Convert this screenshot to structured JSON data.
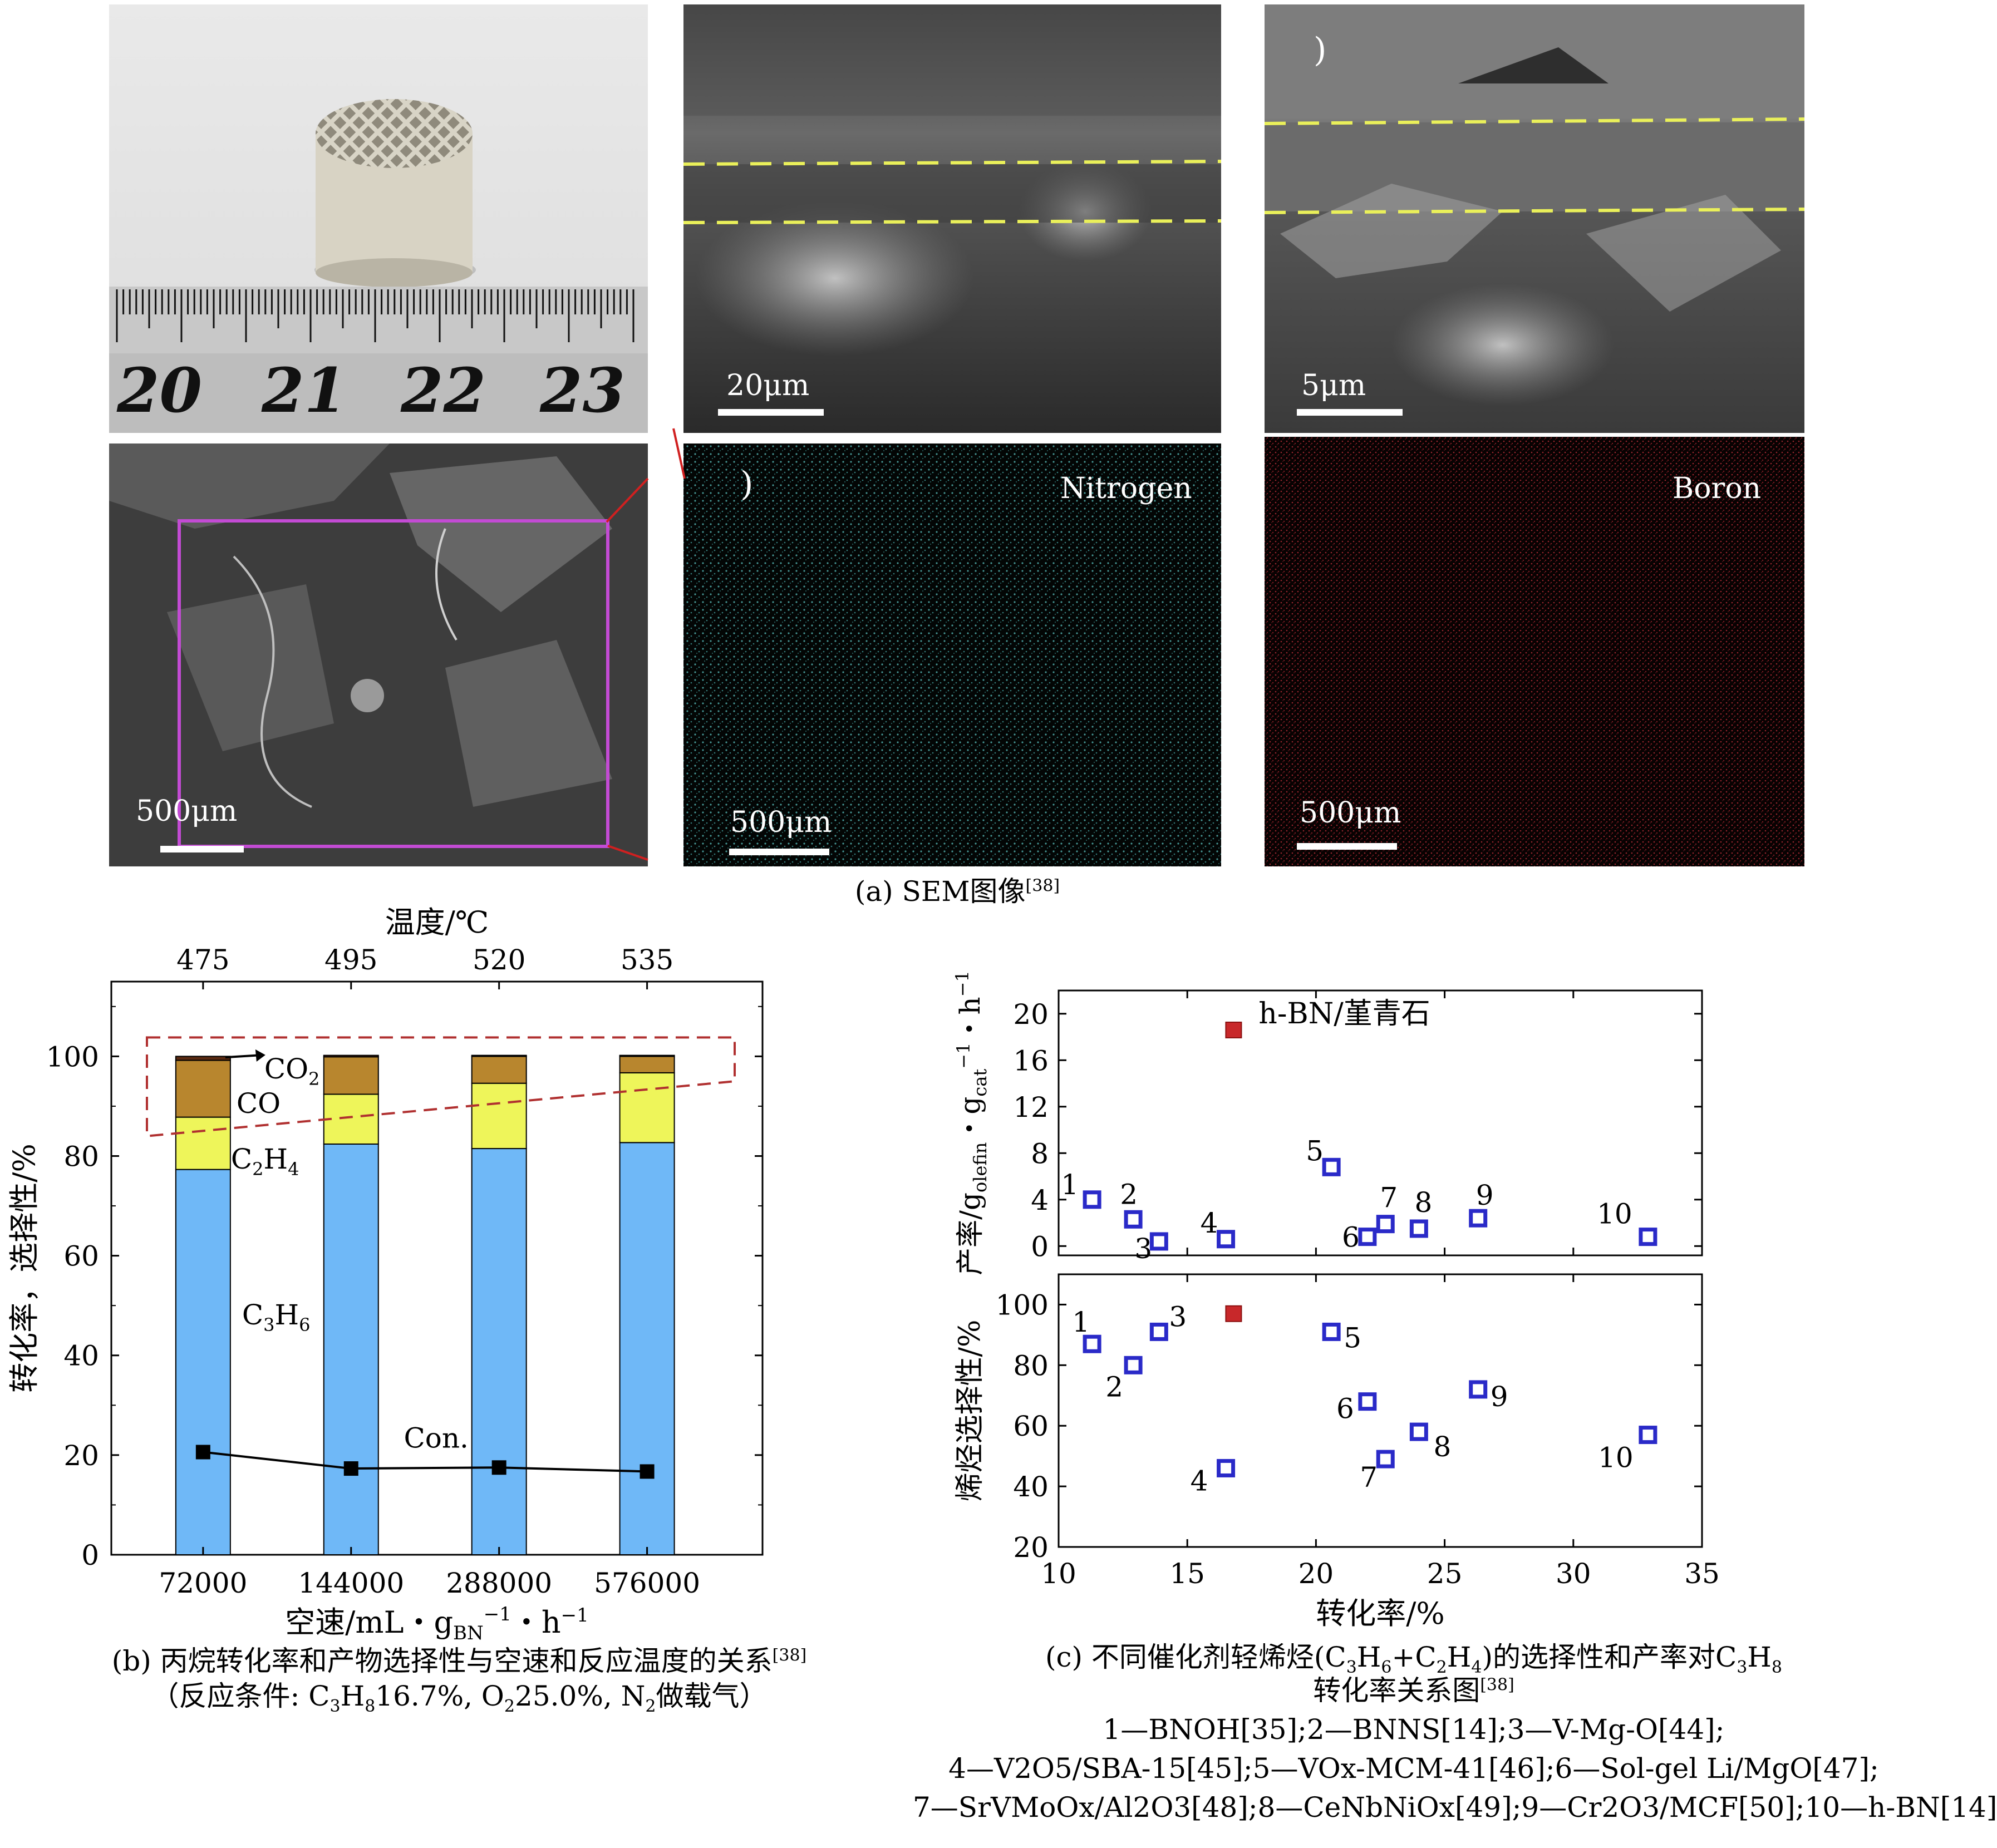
{
  "panel_a": {
    "photo": {
      "ruler_labels": [
        "20",
        "21",
        "22",
        "23"
      ]
    },
    "sem_mid": {
      "scale_label": "20μm"
    },
    "sem_right": {
      "scale_label": "5μm"
    },
    "sem_bottom_left": {
      "scale_label": "500μm"
    },
    "map_nitrogen": {
      "element_label": "Nitrogen",
      "scale_label": "500μm"
    },
    "map_boron": {
      "element_label": "Boron",
      "scale_label": "500μm"
    },
    "caption": "(a) SEM图像",
    "caption_ref": "[38]"
  },
  "panel_b": {
    "caption_line1": "(b) 丙烷转化率和产物选择性与空速和反应温度的关系",
    "caption_line1_ref": "[38]",
    "caption_line2_parts": [
      "（反应条件: C",
      "3",
      "H",
      "8",
      "16.7%, O",
      "2",
      "25.0%, N",
      "2",
      "做载气）"
    ]
  },
  "panel_c": {
    "caption_line1_parts": [
      "(c) 不同催化剂轻烯烃(C",
      "3",
      "H",
      "6",
      "+C",
      "2",
      "H",
      "4",
      ")的选择性和产率对C",
      "3",
      "H",
      "8"
    ],
    "caption_line2": "转化率关系图",
    "caption_line2_ref": "[38]",
    "legend_line1": "1—BNOH[35];2—BNNS[14];3—V-Mg-O[44];",
    "legend_line2": "4—V2O5/SBA-15[45];5—VOx-MCM-41[46];6—Sol-gel Li/MgO[47];",
    "legend_line3": "7—SrVMoOx/Al2O3[48];8—CeNbNiOx[49];9—Cr2O3/MCF[50];10—h-BN[14]"
  },
  "chart_data": [
    {
      "type": "bar",
      "stacked": true,
      "xlabel": "空速/mL・gBN−1・h−1",
      "x2label": "温度/℃",
      "ylabel": "转化率，选择性/%",
      "categories": [
        "72000",
        "144000",
        "288000",
        "576000"
      ],
      "top_axis_ticks": [
        "475",
        "495",
        "520",
        "535"
      ],
      "ylim": [
        0,
        115
      ],
      "yticks": [
        0,
        20,
        40,
        60,
        80,
        100
      ],
      "series": [
        {
          "name": "C3H6",
          "color": "#6fb8f7",
          "values": [
            77.3,
            82.4,
            81.5,
            82.7
          ]
        },
        {
          "name": "C2H4",
          "color": "#eef55a",
          "values": [
            10.5,
            10.0,
            13.1,
            14.0
          ]
        },
        {
          "name": "CO",
          "color": "#b8862e",
          "values": [
            11.4,
            7.5,
            5.4,
            3.3
          ]
        },
        {
          "name": "CO2",
          "color": "#5a2a12",
          "values": [
            0.8,
            0.3,
            0.2,
            0.2
          ]
        }
      ],
      "line_series": {
        "name": "Con.",
        "values": [
          20.6,
          17.3,
          17.5,
          16.7
        ]
      }
    },
    {
      "type": "scatter",
      "ylabel": "产率/golefin・gcat−1・h−1",
      "xlim": [
        10,
        35
      ],
      "ylim": [
        -0.8,
        22
      ],
      "yticks": [
        0,
        4,
        8,
        12,
        16,
        20
      ],
      "points": [
        {
          "label": "1",
          "x": 11.3,
          "y": 4.0
        },
        {
          "label": "2",
          "x": 12.9,
          "y": 2.3
        },
        {
          "label": "3",
          "x": 13.9,
          "y": 0.4
        },
        {
          "label": "4",
          "x": 16.5,
          "y": 0.6
        },
        {
          "label": "5",
          "x": 20.6,
          "y": 6.8
        },
        {
          "label": "6",
          "x": 22.0,
          "y": 0.8
        },
        {
          "label": "7",
          "x": 22.7,
          "y": 1.9
        },
        {
          "label": "8",
          "x": 24.0,
          "y": 1.5
        },
        {
          "label": "9",
          "x": 26.3,
          "y": 2.4
        },
        {
          "label": "10",
          "x": 32.9,
          "y": 0.8
        }
      ],
      "highlight": {
        "label": "h-BN/堇青石",
        "x": 16.8,
        "y": 18.6
      }
    },
    {
      "type": "scatter",
      "xlabel": "转化率/%",
      "ylabel": "烯烃选择性/%",
      "xlim": [
        10,
        35
      ],
      "ylim": [
        20,
        110
      ],
      "xticks": [
        10,
        15,
        20,
        25,
        30,
        35
      ],
      "yticks": [
        20,
        40,
        60,
        80,
        100
      ],
      "points": [
        {
          "label": "1",
          "x": 11.3,
          "y": 87
        },
        {
          "label": "2",
          "x": 12.9,
          "y": 80
        },
        {
          "label": "3",
          "x": 13.9,
          "y": 91
        },
        {
          "label": "4",
          "x": 16.5,
          "y": 46
        },
        {
          "label": "5",
          "x": 20.6,
          "y": 91
        },
        {
          "label": "6",
          "x": 22.0,
          "y": 68
        },
        {
          "label": "7",
          "x": 22.7,
          "y": 49
        },
        {
          "label": "8",
          "x": 24.0,
          "y": 58
        },
        {
          "label": "9",
          "x": 26.3,
          "y": 72
        },
        {
          "label": "10",
          "x": 32.9,
          "y": 57
        }
      ],
      "highlight": {
        "x": 16.8,
        "y": 97
      }
    }
  ]
}
